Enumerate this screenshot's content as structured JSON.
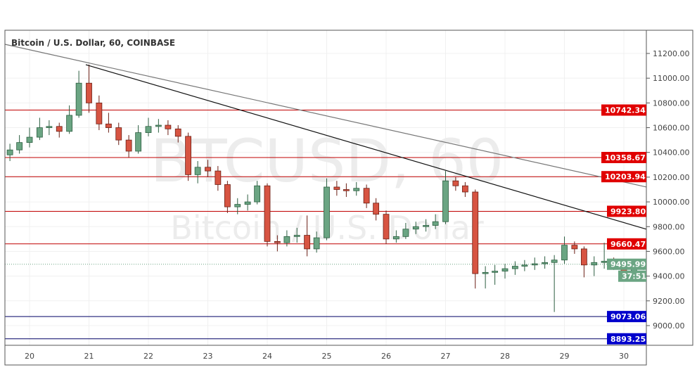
{
  "chart_data": {
    "type": "candlestick",
    "title": "Bitcoin / U.S. Dollar, 60, COINBASE",
    "watermark": {
      "symbol": "BTCUSD, 60",
      "description": "Bitcoin / U.S. Dollar"
    },
    "x_ticks": [
      "20",
      "21",
      "22",
      "23",
      "24",
      "25",
      "26",
      "27",
      "28",
      "29",
      "30"
    ],
    "y_ticks": [
      "9000.00",
      "9200.00",
      "9400.00",
      "9600.00",
      "9800.00",
      "10000.00",
      "10200.00",
      "10400.00",
      "10600.00",
      "10800.00",
      "11000.00",
      "11200.00"
    ],
    "ylim": [
      8780,
      11390
    ],
    "xlim": [
      19.6,
      30.38
    ],
    "grid": true,
    "colors": {
      "up": "#6ba583",
      "down": "#d75442",
      "resistance": "#e00000",
      "support": "#0000cc",
      "last_price": "#6ba583"
    },
    "candles": [
      {
        "t": 19.67,
        "o": 10380,
        "h": 10470,
        "l": 10330,
        "c": 10420
      },
      {
        "t": 19.83,
        "o": 10420,
        "h": 10540,
        "l": 10390,
        "c": 10480
      },
      {
        "t": 20.0,
        "o": 10480,
        "h": 10600,
        "l": 10440,
        "c": 10523
      },
      {
        "t": 20.17,
        "o": 10523,
        "h": 10680,
        "l": 10500,
        "c": 10600
      },
      {
        "t": 20.33,
        "o": 10600,
        "h": 10660,
        "l": 10540,
        "c": 10610
      },
      {
        "t": 20.5,
        "o": 10610,
        "h": 10640,
        "l": 10520,
        "c": 10570
      },
      {
        "t": 20.67,
        "o": 10570,
        "h": 10780,
        "l": 10550,
        "c": 10700
      },
      {
        "t": 20.83,
        "o": 10700,
        "h": 11060,
        "l": 10680,
        "c": 10960
      },
      {
        "t": 21.0,
        "o": 10960,
        "h": 11110,
        "l": 10720,
        "c": 10800
      },
      {
        "t": 21.17,
        "o": 10800,
        "h": 10860,
        "l": 10580,
        "c": 10630
      },
      {
        "t": 21.33,
        "o": 10630,
        "h": 10720,
        "l": 10560,
        "c": 10600
      },
      {
        "t": 21.5,
        "o": 10600,
        "h": 10640,
        "l": 10460,
        "c": 10500
      },
      {
        "t": 21.67,
        "o": 10500,
        "h": 10540,
        "l": 10360,
        "c": 10410
      },
      {
        "t": 21.83,
        "o": 10410,
        "h": 10620,
        "l": 10390,
        "c": 10560
      },
      {
        "t": 22.0,
        "o": 10560,
        "h": 10680,
        "l": 10530,
        "c": 10610
      },
      {
        "t": 22.17,
        "o": 10610,
        "h": 10670,
        "l": 10560,
        "c": 10620
      },
      {
        "t": 22.33,
        "o": 10620,
        "h": 10660,
        "l": 10540,
        "c": 10590
      },
      {
        "t": 22.5,
        "o": 10590,
        "h": 10620,
        "l": 10480,
        "c": 10530
      },
      {
        "t": 22.67,
        "o": 10530,
        "h": 10560,
        "l": 10170,
        "c": 10220
      },
      {
        "t": 22.83,
        "o": 10220,
        "h": 10330,
        "l": 10150,
        "c": 10280
      },
      {
        "t": 23.0,
        "o": 10280,
        "h": 10340,
        "l": 10200,
        "c": 10250
      },
      {
        "t": 23.17,
        "o": 10250,
        "h": 10290,
        "l": 10090,
        "c": 10140
      },
      {
        "t": 23.33,
        "o": 10140,
        "h": 10170,
        "l": 9910,
        "c": 9960
      },
      {
        "t": 23.5,
        "o": 9960,
        "h": 10030,
        "l": 9900,
        "c": 9980
      },
      {
        "t": 23.67,
        "o": 9980,
        "h": 10060,
        "l": 9930,
        "c": 10000
      },
      {
        "t": 23.83,
        "o": 10000,
        "h": 10170,
        "l": 9980,
        "c": 10130
      },
      {
        "t": 24.0,
        "o": 10130,
        "h": 10150,
        "l": 9640,
        "c": 9680
      },
      {
        "t": 24.17,
        "o": 9680,
        "h": 9730,
        "l": 9600,
        "c": 9670
      },
      {
        "t": 24.33,
        "o": 9670,
        "h": 9770,
        "l": 9640,
        "c": 9720
      },
      {
        "t": 24.5,
        "o": 9720,
        "h": 9790,
        "l": 9670,
        "c": 9730
      },
      {
        "t": 24.67,
        "o": 9730,
        "h": 9890,
        "l": 9560,
        "c": 9620
      },
      {
        "t": 24.83,
        "o": 9620,
        "h": 9760,
        "l": 9590,
        "c": 9710
      },
      {
        "t": 25.0,
        "o": 9710,
        "h": 10190,
        "l": 9690,
        "c": 10120
      },
      {
        "t": 25.17,
        "o": 10120,
        "h": 10170,
        "l": 10050,
        "c": 10100
      },
      {
        "t": 25.33,
        "o": 10100,
        "h": 10150,
        "l": 10040,
        "c": 10090
      },
      {
        "t": 25.5,
        "o": 10090,
        "h": 10160,
        "l": 10050,
        "c": 10110
      },
      {
        "t": 25.67,
        "o": 10110,
        "h": 10140,
        "l": 9950,
        "c": 9990
      },
      {
        "t": 25.83,
        "o": 9990,
        "h": 10030,
        "l": 9850,
        "c": 9900
      },
      {
        "t": 26.0,
        "o": 9900,
        "h": 9930,
        "l": 9660,
        "c": 9700
      },
      {
        "t": 26.17,
        "o": 9700,
        "h": 9770,
        "l": 9670,
        "c": 9720
      },
      {
        "t": 26.33,
        "o": 9720,
        "h": 9830,
        "l": 9700,
        "c": 9780
      },
      {
        "t": 26.5,
        "o": 9780,
        "h": 9840,
        "l": 9740,
        "c": 9800
      },
      {
        "t": 26.67,
        "o": 9800,
        "h": 9860,
        "l": 9760,
        "c": 9810
      },
      {
        "t": 26.83,
        "o": 9810,
        "h": 9900,
        "l": 9780,
        "c": 9840
      },
      {
        "t": 27.0,
        "o": 9840,
        "h": 10250,
        "l": 9820,
        "c": 10170
      },
      {
        "t": 27.17,
        "o": 10170,
        "h": 10200,
        "l": 10090,
        "c": 10130
      },
      {
        "t": 27.33,
        "o": 10130,
        "h": 10160,
        "l": 10040,
        "c": 10080
      },
      {
        "t": 27.5,
        "o": 10080,
        "h": 10100,
        "l": 9300,
        "c": 9420
      },
      {
        "t": 27.67,
        "o": 9420,
        "h": 9480,
        "l": 9300,
        "c": 9430
      },
      {
        "t": 27.83,
        "o": 9430,
        "h": 9490,
        "l": 9330,
        "c": 9440
      },
      {
        "t": 28.0,
        "o": 9440,
        "h": 9500,
        "l": 9380,
        "c": 9460
      },
      {
        "t": 28.17,
        "o": 9460,
        "h": 9520,
        "l": 9410,
        "c": 9480
      },
      {
        "t": 28.33,
        "o": 9480,
        "h": 9530,
        "l": 9440,
        "c": 9490
      },
      {
        "t": 28.5,
        "o": 9490,
        "h": 9550,
        "l": 9450,
        "c": 9500
      },
      {
        "t": 28.67,
        "o": 9500,
        "h": 9560,
        "l": 9460,
        "c": 9510
      },
      {
        "t": 28.83,
        "o": 9510,
        "h": 9570,
        "l": 9110,
        "c": 9530
      },
      {
        "t": 29.0,
        "o": 9530,
        "h": 9720,
        "l": 9500,
        "c": 9650
      },
      {
        "t": 29.17,
        "o": 9650,
        "h": 9680,
        "l": 9580,
        "c": 9620
      },
      {
        "t": 29.33,
        "o": 9620,
        "h": 9640,
        "l": 9390,
        "c": 9490
      },
      {
        "t": 29.5,
        "o": 9490,
        "h": 9560,
        "l": 9400,
        "c": 9510
      },
      {
        "t": 29.67,
        "o": 9510,
        "h": 9670,
        "l": 9460,
        "c": 9520
      },
      {
        "t": 29.83,
        "o": 9520,
        "h": 9550,
        "l": 9450,
        "c": 9500
      },
      {
        "t": 30.0,
        "o": 9500,
        "h": 9520,
        "l": 9400,
        "c": 9440
      },
      {
        "t": 30.17,
        "o": 9440,
        "h": 9520,
        "l": 9410,
        "c": 9470
      },
      {
        "t": 30.33,
        "o": 9470,
        "h": 9530,
        "l": 9450,
        "c": 9495.99
      }
    ],
    "horizontal_levels": [
      {
        "value": 10742.34,
        "label": "10742.34",
        "type": "resistance"
      },
      {
        "value": 10358.67,
        "label": "10358.67",
        "type": "resistance"
      },
      {
        "value": 10203.94,
        "label": "10203.94",
        "type": "resistance"
      },
      {
        "value": 9923.8,
        "label": "9923.80",
        "type": "resistance"
      },
      {
        "value": 9660.47,
        "label": "9660.47",
        "type": "resistance"
      },
      {
        "value": 9073.06,
        "label": "9073.06",
        "type": "support"
      },
      {
        "value": 8893.25,
        "label": "8893.25",
        "type": "support"
      }
    ],
    "trend_lines": [
      {
        "color": "#777777",
        "from": {
          "t": 19.586,
          "price": 11274
        },
        "to": {
          "t": 30.38,
          "price": 10120
        }
      },
      {
        "color": "#111111",
        "from": {
          "t": 20.947,
          "price": 11109
        },
        "to": {
          "t": 30.38,
          "price": 9779
        }
      }
    ],
    "last_price": {
      "value": 9495.99,
      "label": "9495.99",
      "countdown": "37:51"
    }
  }
}
